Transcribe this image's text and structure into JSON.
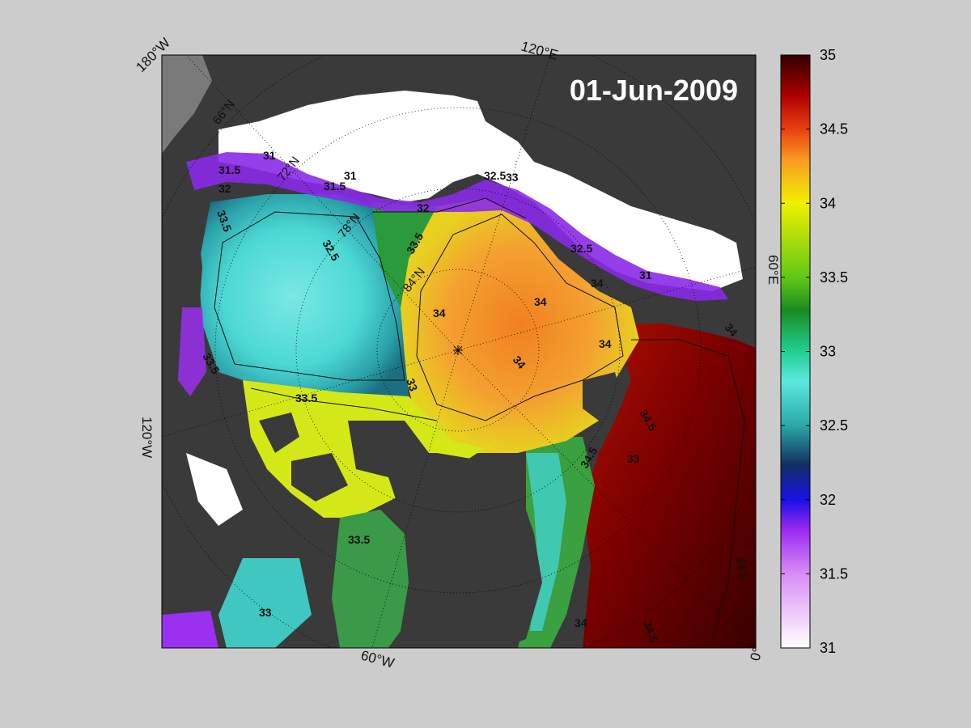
{
  "map": {
    "date": "01-Jun-2009",
    "longitude_labels": {
      "top_left": "180°W",
      "top": "120°E",
      "right": "60°E",
      "left": "120°W",
      "bottom": "60°W",
      "bottom_right": "0°"
    },
    "latitude_labels": [
      "66°N",
      "72°N",
      "78°N",
      "84°N"
    ],
    "contour_labels": [
      "31",
      "31.5",
      "32",
      "32.5",
      "33",
      "33.5",
      "34",
      "34.5"
    ],
    "colors": {
      "land": "#3a3a3a",
      "land_light": "#7a7a7a",
      "ice": "#ffffff",
      "background": "#cccccc"
    }
  },
  "colorbar": {
    "min": 31,
    "max": 35,
    "ticks": [
      "31",
      "31.5",
      "32",
      "32.5",
      "33",
      "33.5",
      "34",
      "34.5",
      "35"
    ]
  }
}
